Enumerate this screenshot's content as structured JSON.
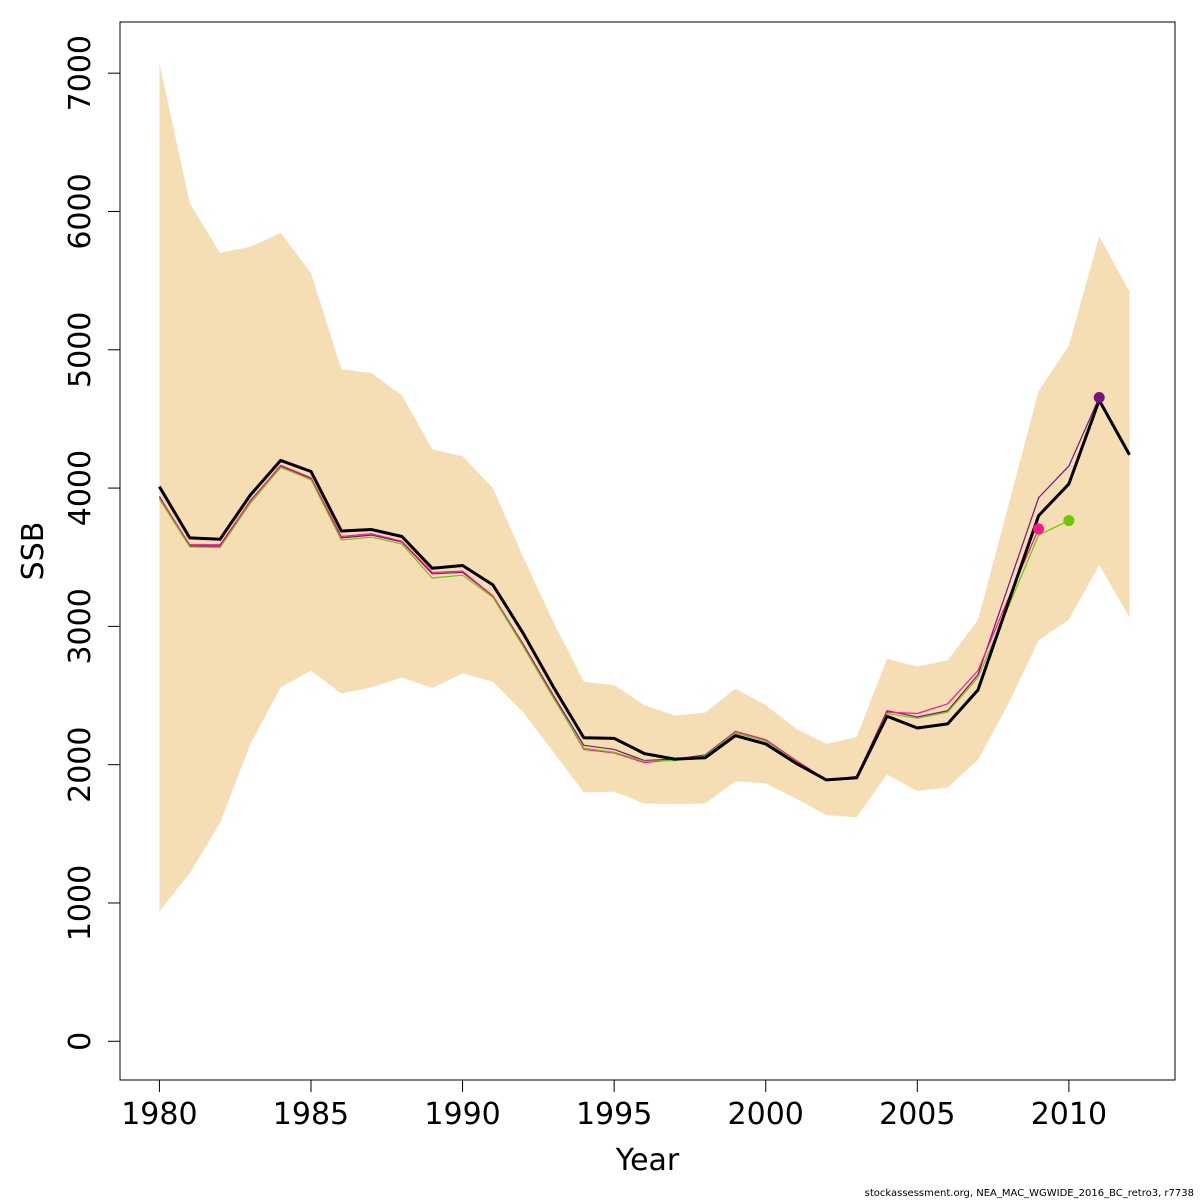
{
  "chart_data": {
    "type": "line",
    "xlabel": "Year",
    "ylabel": "SSB",
    "xlim": [
      1978.7,
      1982.7
    ],
    "ylim": [
      -280,
      7370
    ],
    "xticks": [
      1980,
      1985,
      1990,
      1995,
      2000,
      2005,
      2010
    ],
    "yticks": [
      0,
      1000,
      2000,
      3000,
      4000,
      5000,
      6000,
      7000
    ],
    "grid": false,
    "legend": "none",
    "caption": "stockassessment.org, NEA_MAC_WGWIDE_2016_BC_retro3, r7738",
    "confidence_band": {
      "color": "#f5deb3",
      "x": [
        1980,
        1981,
        1982,
        1983,
        1984,
        1985,
        1986,
        1987,
        1988,
        1989,
        1990,
        1991,
        1992,
        1993,
        1994,
        1995,
        1996,
        1997,
        1998,
        1999,
        2000,
        2001,
        2002,
        2003,
        2004,
        2005,
        2006,
        2007,
        2008,
        2009,
        2010,
        2011,
        2012
      ],
      "upper": [
        7070,
        6060,
        5700,
        5745,
        5845,
        5555,
        4860,
        4830,
        4670,
        4280,
        4230,
        4000,
        3500,
        3030,
        2600,
        2575,
        2430,
        2355,
        2375,
        2550,
        2430,
        2260,
        2150,
        2200,
        2765,
        2710,
        2755,
        3045,
        3870,
        4700,
        5030,
        5820,
        5420
      ],
      "lower": [
        940,
        1215,
        1580,
        2150,
        2560,
        2680,
        2515,
        2560,
        2630,
        2555,
        2660,
        2600,
        2380,
        2090,
        1800,
        1805,
        1720,
        1715,
        1720,
        1880,
        1865,
        1755,
        1635,
        1620,
        1930,
        1810,
        1835,
        2035,
        2440,
        2900,
        3050,
        3445,
        3065
      ]
    },
    "series": [
      {
        "color": "#000000",
        "x": [
          1980,
          1981,
          1982,
          1983,
          1984,
          1985,
          1986,
          1987,
          1988,
          1989,
          1990,
          1991,
          1992,
          1993,
          1994,
          1995,
          1996,
          1997,
          1998,
          1999,
          2000,
          2001,
          2002,
          2003,
          2004,
          2005,
          2006,
          2007,
          2008,
          2009,
          2010,
          2011,
          2012
        ],
        "values": [
          4010,
          3640,
          3630,
          3950,
          4200,
          4120,
          3690,
          3700,
          3650,
          3420,
          3440,
          3300,
          2950,
          2560,
          2195,
          2190,
          2080,
          2040,
          2050,
          2210,
          2150,
          2010,
          1890,
          1905,
          2350,
          2265,
          2295,
          2540,
          3170,
          3800,
          4030,
          4635,
          4240
        ]
      },
      {
        "color": "#7b0f86",
        "x": [
          1980,
          1981,
          1982,
          1983,
          1984,
          1985,
          1986,
          1987,
          1988,
          1989,
          1990,
          1991,
          1992,
          1993,
          1994,
          1995,
          1996,
          1997,
          1998,
          1999,
          2000,
          2001,
          2002,
          2003,
          2004,
          2005,
          2006,
          2007,
          2008,
          2009,
          2010,
          2011
        ],
        "values": [
          3940,
          3580,
          3580,
          3910,
          4160,
          4070,
          3640,
          3660,
          3610,
          3380,
          3390,
          3220,
          2870,
          2500,
          2140,
          2110,
          2030,
          2040,
          2070,
          2240,
          2180,
          2030,
          1890,
          1915,
          2390,
          2345,
          2390,
          2650,
          3290,
          3930,
          4160,
          4655
        ],
        "end_marker": {
          "x": 2011,
          "y": 4655
        }
      },
      {
        "color": "#ff1493",
        "x": [
          1980,
          1981,
          1982,
          1983,
          1984,
          1985,
          1986,
          1987,
          1988,
          1989,
          1990,
          1991,
          1992,
          1993,
          1994,
          1995,
          1996,
          1997,
          1998,
          1999,
          2000,
          2001,
          2002,
          2003,
          2004,
          2005,
          2006,
          2007,
          2008,
          2009
        ],
        "values": [
          3935,
          3590,
          3590,
          3905,
          4165,
          4075,
          3650,
          3670,
          3615,
          3390,
          3400,
          3220,
          2860,
          2490,
          2110,
          2085,
          2015,
          2035,
          2060,
          2240,
          2180,
          2030,
          1890,
          1910,
          2380,
          2370,
          2440,
          2680,
          3200,
          3705
        ],
        "end_marker": {
          "x": 2009,
          "y": 3705
        }
      },
      {
        "color": "#66cc00",
        "x": [
          1980,
          1981,
          1982,
          1983,
          1984,
          1985,
          1986,
          1987,
          1988,
          1989,
          1990,
          1991,
          1992,
          1993,
          1994,
          1995,
          1996,
          1997,
          1998,
          1999,
          2000,
          2001,
          2002,
          2003,
          2004,
          2005,
          2006,
          2007,
          2008,
          2009,
          2010
        ],
        "values": [
          3920,
          3575,
          3570,
          3890,
          4150,
          4060,
          3625,
          3645,
          3595,
          3350,
          3370,
          3210,
          2855,
          2480,
          2120,
          2090,
          2025,
          2030,
          2065,
          2230,
          2170,
          2020,
          1885,
          1900,
          2370,
          2335,
          2380,
          2630,
          3140,
          3660,
          3765
        ],
        "end_marker": {
          "x": 2010,
          "y": 3765
        }
      }
    ]
  }
}
